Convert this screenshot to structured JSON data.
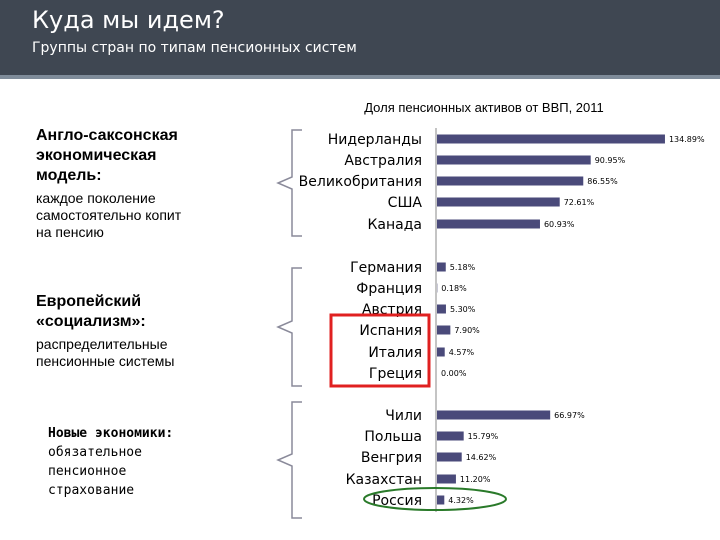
{
  "slide": {
    "title": "Куда мы идем?",
    "subtitle": "Группы стран по типам пенсионных систем"
  },
  "groups": [
    {
      "title_lines": [
        "Англо-саксонская",
        "экономическая",
        "модель:"
      ],
      "description_lines": [
        "каждое поколение",
        "самостоятельно копит",
        "на пенсию"
      ]
    },
    {
      "title_lines": [
        "Европейский",
        "«социализм»:"
      ],
      "description_lines": [
        "распределительные",
        "пенсионные системы"
      ]
    },
    {
      "title_lines": [
        "Новые экономики:"
      ],
      "description_lines": [
        "обязательное",
        "пенсионное",
        "страхование"
      ]
    }
  ],
  "chart_data": {
    "type": "bar",
    "orientation": "horizontal",
    "title": "Доля пенсионных активов от ВВП, 2011",
    "bar_color": "#4a4a7a",
    "categories": [
      "Нидерланды",
      "Австралия",
      "Великобритания",
      "США",
      "Канада",
      "Германия",
      "Франция",
      "Австрия",
      "Испания",
      "Италия",
      "Греция",
      "Чили",
      "Польша",
      "Венгрия",
      "Казахстан",
      "Россия"
    ],
    "values": [
      134.89,
      90.95,
      86.55,
      72.61,
      60.93,
      5.18,
      0.18,
      5.3,
      7.9,
      4.57,
      0.0,
      66.97,
      15.79,
      14.62,
      11.2,
      4.32
    ],
    "value_labels": [
      "134.89%",
      "90.95%",
      "86.55%",
      "72.61%",
      "60.93%",
      "5.18%",
      "0.18%",
      "5.30%",
      "7.90%",
      "4.57%",
      "0.00%",
      "66.97%",
      "15.79%",
      "14.62%",
      "11.20%",
      "4.32%"
    ],
    "highlight_box_color": "#e02020",
    "highlight_ellipse_color": "#2a7a2a"
  }
}
